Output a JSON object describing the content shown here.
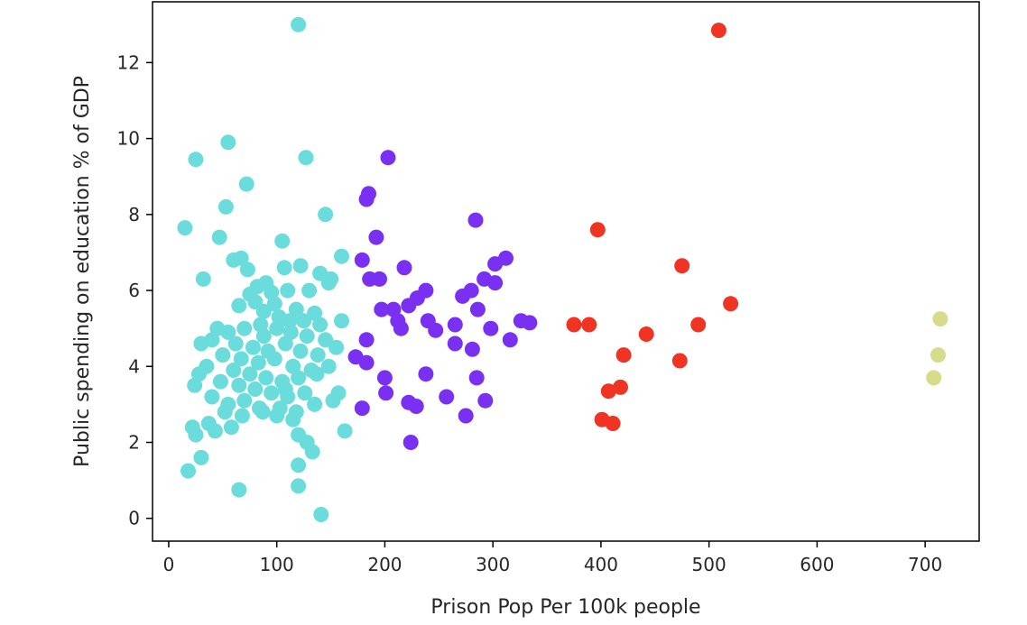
{
  "chart_data": {
    "type": "scatter",
    "title": "",
    "xlabel": "Prison Pop Per 100k people",
    "ylabel": "Public spending on education % of GDP",
    "xlim": [
      -15,
      750
    ],
    "ylim": [
      -0.6,
      13.6
    ],
    "xticks": [
      0,
      100,
      200,
      300,
      400,
      500,
      600,
      700
    ],
    "yticks": [
      0,
      2,
      4,
      6,
      8,
      10,
      12
    ],
    "grid": false,
    "legend": "none",
    "series": [
      {
        "color": "#6adcdc",
        "points": [
          [
            120,
            13.0
          ],
          [
            55,
            9.9
          ],
          [
            25,
            9.45
          ],
          [
            127,
            9.5
          ],
          [
            72,
            8.8
          ],
          [
            53,
            8.2
          ],
          [
            145,
            8.0
          ],
          [
            15,
            7.65
          ],
          [
            47,
            7.4
          ],
          [
            105,
            7.3
          ],
          [
            160,
            6.9
          ],
          [
            60,
            6.8
          ],
          [
            67,
            6.85
          ],
          [
            107,
            6.6
          ],
          [
            122,
            6.65
          ],
          [
            140,
            6.45
          ],
          [
            150,
            6.3
          ],
          [
            73,
            6.55
          ],
          [
            32,
            6.3
          ],
          [
            82,
            6.1
          ],
          [
            90,
            6.2
          ],
          [
            75,
            5.9
          ],
          [
            95,
            5.95
          ],
          [
            110,
            6.0
          ],
          [
            130,
            6.0
          ],
          [
            148,
            6.2
          ],
          [
            65,
            5.6
          ],
          [
            80,
            5.7
          ],
          [
            98,
            5.65
          ],
          [
            118,
            5.5
          ],
          [
            135,
            5.4
          ],
          [
            88,
            5.45
          ],
          [
            102,
            5.3
          ],
          [
            125,
            5.2
          ],
          [
            140,
            5.1
          ],
          [
            160,
            5.2
          ],
          [
            45,
            5.0
          ],
          [
            55,
            4.9
          ],
          [
            70,
            5.0
          ],
          [
            85,
            5.1
          ],
          [
            100,
            5.0
          ],
          [
            113,
            4.9
          ],
          [
            128,
            4.8
          ],
          [
            145,
            4.7
          ],
          [
            40,
            4.7
          ],
          [
            62,
            4.6
          ],
          [
            78,
            4.5
          ],
          [
            92,
            4.4
          ],
          [
            108,
            4.6
          ],
          [
            122,
            4.4
          ],
          [
            138,
            4.3
          ],
          [
            155,
            4.5
          ],
          [
            30,
            4.6
          ],
          [
            50,
            4.3
          ],
          [
            67,
            4.2
          ],
          [
            83,
            4.1
          ],
          [
            98,
            4.2
          ],
          [
            115,
            4.0
          ],
          [
            132,
            3.9
          ],
          [
            148,
            4.0
          ],
          [
            35,
            4.0
          ],
          [
            60,
            3.9
          ],
          [
            75,
            3.8
          ],
          [
            90,
            3.7
          ],
          [
            105,
            3.6
          ],
          [
            120,
            3.7
          ],
          [
            137,
            3.8
          ],
          [
            28,
            3.8
          ],
          [
            48,
            3.6
          ],
          [
            65,
            3.5
          ],
          [
            80,
            3.4
          ],
          [
            95,
            3.3
          ],
          [
            110,
            3.2
          ],
          [
            126,
            3.3
          ],
          [
            152,
            3.1
          ],
          [
            24,
            3.5
          ],
          [
            40,
            3.2
          ],
          [
            55,
            3.0
          ],
          [
            70,
            3.1
          ],
          [
            87,
            2.8
          ],
          [
            103,
            2.9
          ],
          [
            118,
            2.8
          ],
          [
            135,
            3.0
          ],
          [
            22,
            2.4
          ],
          [
            37,
            2.5
          ],
          [
            52,
            2.8
          ],
          [
            68,
            2.7
          ],
          [
            84,
            2.9
          ],
          [
            100,
            2.7
          ],
          [
            115,
            2.6
          ],
          [
            43,
            2.3
          ],
          [
            58,
            2.4
          ],
          [
            25,
            2.2
          ],
          [
            120,
            2.2
          ],
          [
            128,
            2.0
          ],
          [
            133,
            1.75
          ],
          [
            30,
            1.6
          ],
          [
            18,
            1.25
          ],
          [
            120,
            1.4
          ],
          [
            120,
            0.85
          ],
          [
            65,
            0.75
          ],
          [
            141,
            0.1
          ],
          [
            163,
            2.3
          ],
          [
            157,
            3.3
          ],
          [
            108,
            3.4
          ],
          [
            88,
            4.8
          ],
          [
            112,
            5.2
          ]
        ]
      },
      {
        "color": "#7a30f0",
        "points": [
          [
            203,
            9.5
          ],
          [
            183,
            8.4
          ],
          [
            185,
            8.55
          ],
          [
            284,
            7.85
          ],
          [
            192,
            7.4
          ],
          [
            312,
            6.85
          ],
          [
            179,
            6.8
          ],
          [
            218,
            6.6
          ],
          [
            302,
            6.7
          ],
          [
            186,
            6.3
          ],
          [
            195,
            6.3
          ],
          [
            292,
            6.3
          ],
          [
            302,
            6.2
          ],
          [
            238,
            6.0
          ],
          [
            280,
            6.0
          ],
          [
            272,
            5.85
          ],
          [
            230,
            5.8
          ],
          [
            222,
            5.6
          ],
          [
            197,
            5.5
          ],
          [
            208,
            5.5
          ],
          [
            286,
            5.5
          ],
          [
            240,
            5.2
          ],
          [
            212,
            5.2
          ],
          [
            215,
            5.0
          ],
          [
            247,
            4.95
          ],
          [
            265,
            5.1
          ],
          [
            298,
            5.0
          ],
          [
            326,
            5.2
          ],
          [
            334,
            5.15
          ],
          [
            183,
            4.7
          ],
          [
            316,
            4.7
          ],
          [
            265,
            4.6
          ],
          [
            281,
            4.45
          ],
          [
            173,
            4.25
          ],
          [
            183,
            4.1
          ],
          [
            200,
            3.7
          ],
          [
            238,
            3.8
          ],
          [
            285,
            3.7
          ],
          [
            201,
            3.3
          ],
          [
            222,
            3.05
          ],
          [
            229,
            2.95
          ],
          [
            257,
            3.2
          ],
          [
            293,
            3.1
          ],
          [
            179,
            2.9
          ],
          [
            275,
            2.7
          ],
          [
            224,
            2.0
          ]
        ]
      },
      {
        "color": "#ef3423",
        "points": [
          [
            509,
            12.85
          ],
          [
            397,
            7.6
          ],
          [
            475,
            6.65
          ],
          [
            520,
            5.65
          ],
          [
            375,
            5.1
          ],
          [
            389,
            5.1
          ],
          [
            490,
            5.1
          ],
          [
            442,
            4.85
          ],
          [
            473,
            4.15
          ],
          [
            421,
            4.3
          ],
          [
            407,
            3.35
          ],
          [
            418,
            3.45
          ],
          [
            401,
            2.6
          ],
          [
            411,
            2.5
          ]
        ]
      },
      {
        "color": "#d8dc8a",
        "points": [
          [
            714,
            5.25
          ],
          [
            712,
            4.3
          ],
          [
            708,
            3.7
          ]
        ]
      }
    ]
  }
}
